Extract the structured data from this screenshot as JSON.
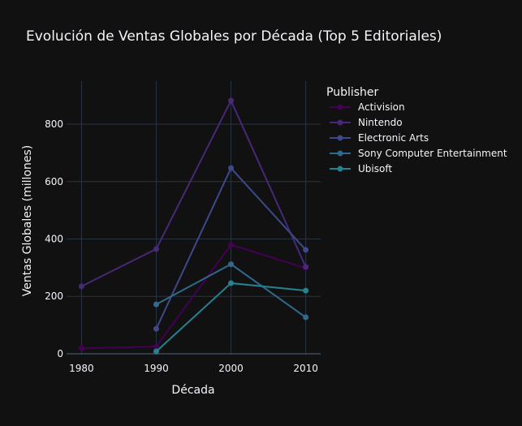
{
  "chart_data": {
    "type": "line",
    "title": "Evolución de Ventas Globales por Década (Top 5 Editoriales)",
    "xlabel": "Década",
    "ylabel": "Ventas Globales (millones)",
    "x_ticks": [
      1980,
      1990,
      2000,
      2010
    ],
    "y_ticks": [
      0,
      200,
      400,
      600,
      800
    ],
    "xlim": [
      1978,
      2012
    ],
    "ylim": [
      -3,
      950
    ],
    "grid": true,
    "legend": {
      "title": "Publisher",
      "position": "top-right"
    },
    "series": [
      {
        "name": "Activision",
        "color": "#440154",
        "x": [
          1980,
          1990,
          2000,
          2010
        ],
        "values": [
          19,
          25,
          380,
          298
        ]
      },
      {
        "name": "Nintendo",
        "color": "#482878",
        "x": [
          1980,
          1990,
          2000,
          2010
        ],
        "values": [
          235,
          365,
          882,
          303
        ]
      },
      {
        "name": "Electronic Arts",
        "color": "#3e4989",
        "x": [
          1990,
          2000,
          2010
        ],
        "values": [
          87,
          647,
          362
        ]
      },
      {
        "name": "Sony Computer Entertainment",
        "color": "#31688e",
        "x": [
          1990,
          2000,
          2010
        ],
        "values": [
          172,
          312,
          127
        ]
      },
      {
        "name": "Ubisoft",
        "color": "#26828e",
        "x": [
          1990,
          2000,
          2010
        ],
        "values": [
          8,
          246,
          220
        ]
      }
    ]
  }
}
